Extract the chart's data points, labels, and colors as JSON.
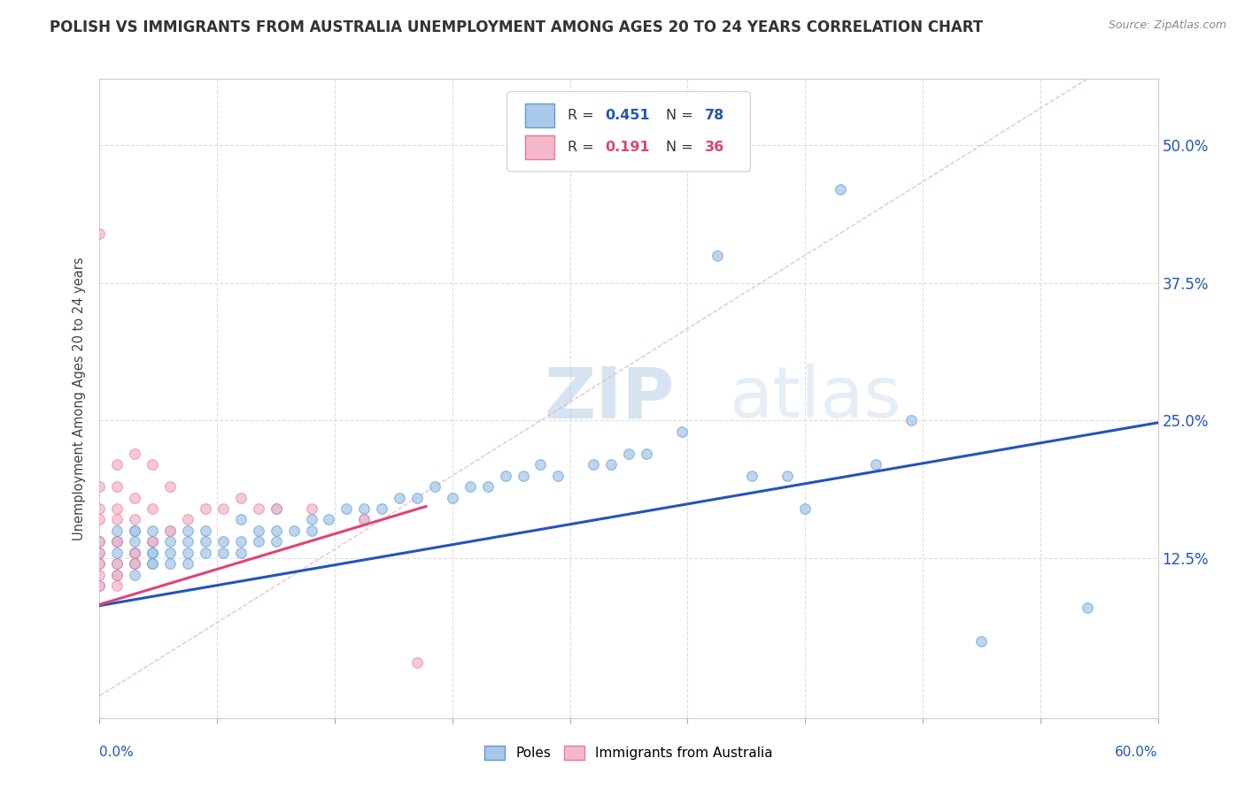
{
  "title": "POLISH VS IMMIGRANTS FROM AUSTRALIA UNEMPLOYMENT AMONG AGES 20 TO 24 YEARS CORRELATION CHART",
  "source": "Source: ZipAtlas.com",
  "ylabel": "Unemployment Among Ages 20 to 24 years",
  "xlim": [
    0.0,
    0.6
  ],
  "ylim": [
    -0.02,
    0.56
  ],
  "yticks": [
    0.125,
    0.25,
    0.375,
    0.5
  ],
  "ytick_labels": [
    "12.5%",
    "25.0%",
    "37.5%",
    "50.0%"
  ],
  "series1_label": "Poles",
  "series2_label": "Immigrants from Australia",
  "series1_color": "#aac8e8",
  "series2_color": "#f5b8cb",
  "series1_edge_color": "#5b9bd5",
  "series2_edge_color": "#e8799a",
  "trend1_color": "#2255bb",
  "trend2_color": "#dd4477",
  "diag_color": "#e8b0c0",
  "R1": 0.451,
  "N1": 78,
  "R2": 0.191,
  "N2": 36,
  "poles_x": [
    0.0,
    0.0,
    0.0,
    0.0,
    0.01,
    0.01,
    0.01,
    0.01,
    0.01,
    0.01,
    0.02,
    0.02,
    0.02,
    0.02,
    0.02,
    0.02,
    0.02,
    0.02,
    0.03,
    0.03,
    0.03,
    0.03,
    0.03,
    0.03,
    0.03,
    0.04,
    0.04,
    0.04,
    0.04,
    0.05,
    0.05,
    0.05,
    0.05,
    0.06,
    0.06,
    0.06,
    0.07,
    0.07,
    0.08,
    0.08,
    0.08,
    0.09,
    0.09,
    0.1,
    0.1,
    0.1,
    0.11,
    0.12,
    0.12,
    0.13,
    0.14,
    0.15,
    0.15,
    0.16,
    0.17,
    0.18,
    0.19,
    0.2,
    0.21,
    0.22,
    0.23,
    0.24,
    0.25,
    0.26,
    0.28,
    0.29,
    0.3,
    0.31,
    0.33,
    0.35,
    0.37,
    0.39,
    0.4,
    0.42,
    0.44,
    0.46,
    0.5,
    0.56
  ],
  "poles_y": [
    0.1,
    0.12,
    0.13,
    0.14,
    0.11,
    0.12,
    0.13,
    0.14,
    0.14,
    0.15,
    0.11,
    0.12,
    0.12,
    0.13,
    0.13,
    0.14,
    0.15,
    0.15,
    0.12,
    0.12,
    0.13,
    0.13,
    0.14,
    0.14,
    0.15,
    0.12,
    0.13,
    0.14,
    0.15,
    0.12,
    0.13,
    0.14,
    0.15,
    0.13,
    0.14,
    0.15,
    0.13,
    0.14,
    0.13,
    0.14,
    0.16,
    0.14,
    0.15,
    0.14,
    0.15,
    0.17,
    0.15,
    0.15,
    0.16,
    0.16,
    0.17,
    0.16,
    0.17,
    0.17,
    0.18,
    0.18,
    0.19,
    0.18,
    0.19,
    0.19,
    0.2,
    0.2,
    0.21,
    0.2,
    0.21,
    0.21,
    0.22,
    0.22,
    0.24,
    0.4,
    0.2,
    0.2,
    0.17,
    0.46,
    0.21,
    0.25,
    0.05,
    0.08
  ],
  "aus_x": [
    0.0,
    0.0,
    0.0,
    0.0,
    0.0,
    0.0,
    0.0,
    0.0,
    0.0,
    0.01,
    0.01,
    0.01,
    0.01,
    0.01,
    0.01,
    0.01,
    0.01,
    0.02,
    0.02,
    0.02,
    0.02,
    0.02,
    0.03,
    0.03,
    0.03,
    0.04,
    0.04,
    0.05,
    0.06,
    0.07,
    0.08,
    0.09,
    0.1,
    0.12,
    0.15,
    0.18
  ],
  "aus_y": [
    0.1,
    0.11,
    0.12,
    0.13,
    0.14,
    0.16,
    0.17,
    0.19,
    0.42,
    0.1,
    0.11,
    0.12,
    0.14,
    0.16,
    0.17,
    0.19,
    0.21,
    0.12,
    0.13,
    0.16,
    0.18,
    0.22,
    0.14,
    0.17,
    0.21,
    0.15,
    0.19,
    0.16,
    0.17,
    0.17,
    0.18,
    0.17,
    0.17,
    0.17,
    0.16,
    0.03
  ],
  "watermark_zip": "ZIP",
  "watermark_atlas": "atlas",
  "background_color": "#ffffff",
  "grid_color": "#dddddd",
  "title_fontsize": 12,
  "source_fontsize": 9
}
